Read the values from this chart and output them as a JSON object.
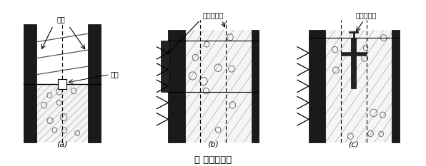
{
  "title": "图 施工缝构造",
  "title_fontsize": 10,
  "bg_color": "#ffffff",
  "label_a": "(a)",
  "label_b": "(b)",
  "label_c": "(c)",
  "text_gangjin": "钢筋",
  "text_liucao": "留槽",
  "text_waibei": "外贴止水带",
  "text_zhongmai": "中埋止水带",
  "concrete_bg": "#f5f5f5",
  "wall_color": "#1a1a1a",
  "hatch_line_color": "#aaaaaa",
  "circle_color": "#555555"
}
